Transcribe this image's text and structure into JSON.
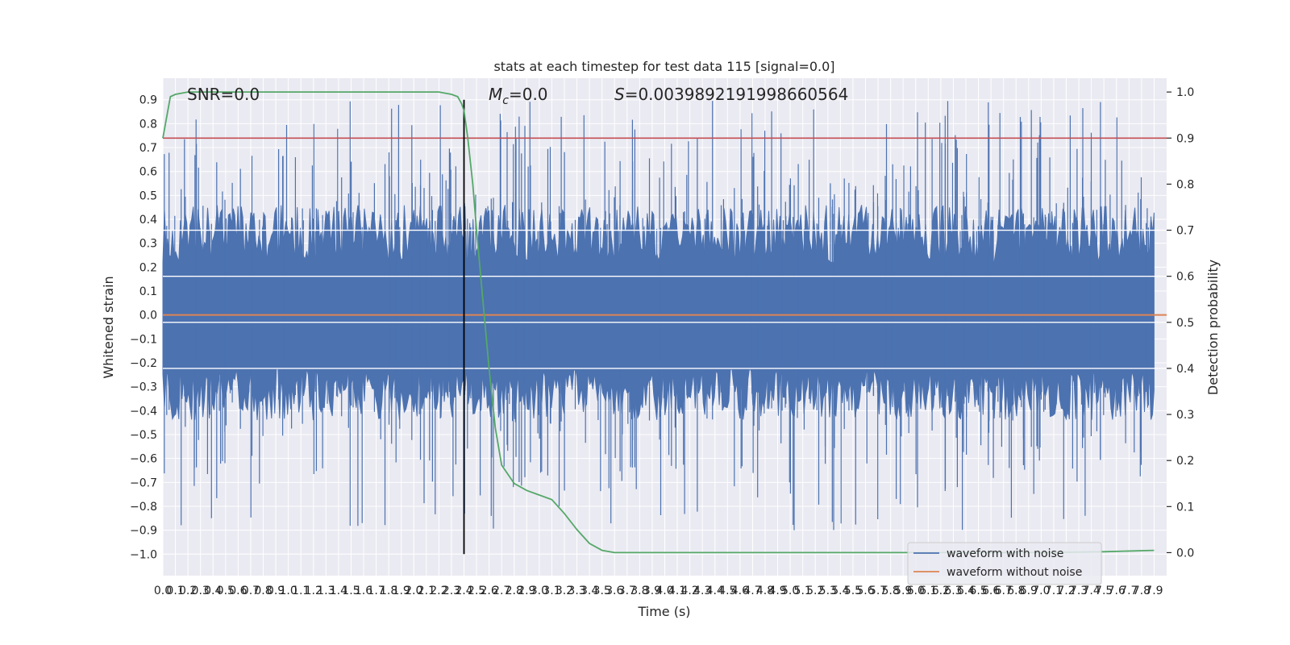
{
  "chart_data": {
    "type": "line",
    "title": "stats at each timestep for test data 115 [signal=0.0]",
    "xlabel": "Time (s)",
    "ylabel_left": "Whitened strain",
    "ylabel_right": "Detection probability",
    "xlim": [
      0,
      8
    ],
    "ylim_left": [
      -1.09,
      0.99
    ],
    "ylim_right": [
      -0.05,
      1.03
    ],
    "x_ticks": [
      "0.0",
      "0.1",
      "0.2",
      "0.3",
      "0.4",
      "0.5",
      "0.6",
      "0.7",
      "0.8",
      "0.9",
      "1.0",
      "1.1",
      "1.2",
      "1.3",
      "1.4",
      "1.5",
      "1.6",
      "1.7",
      "1.8",
      "1.9",
      "2.0",
      "2.1",
      "2.2",
      "2.3",
      "2.4",
      "2.5",
      "2.6",
      "2.7",
      "2.8",
      "2.9",
      "3.0",
      "3.1",
      "3.2",
      "3.3",
      "3.4",
      "3.5",
      "3.6",
      "3.7",
      "3.8",
      "3.9",
      "4.0",
      "4.1",
      "4.2",
      "4.3",
      "4.4",
      "4.5",
      "4.6",
      "4.7",
      "4.8",
      "4.9",
      "5.0",
      "5.1",
      "5.2",
      "5.3",
      "5.4",
      "5.5",
      "5.6",
      "5.7",
      "5.8",
      "5.9",
      "6.0",
      "6.1",
      "6.2",
      "6.3",
      "6.4",
      "6.5",
      "6.6",
      "6.7",
      "6.8",
      "6.9",
      "7.0",
      "7.1",
      "7.2",
      "7.3",
      "7.4",
      "7.5",
      "7.6",
      "7.7",
      "7.8",
      "7.9"
    ],
    "y_ticks_left": [
      "0.9",
      "0.8",
      "0.7",
      "0.6",
      "0.5",
      "0.4",
      "0.3",
      "0.2",
      "0.1",
      "0.0",
      "−0.1",
      "−0.2",
      "−0.3",
      "−0.4",
      "−0.5",
      "−0.6",
      "−0.7",
      "−0.8",
      "−0.9",
      "−1.0"
    ],
    "y_ticks_right": [
      "1.0",
      "0.9",
      "0.8",
      "0.7",
      "0.6",
      "0.5",
      "0.4",
      "0.3",
      "0.2",
      "0.1",
      "0.0"
    ],
    "annotations": {
      "snr": "SNR=0.0",
      "mc_symbol": "M",
      "mc_sub": "c",
      "mc_value": "=0.0",
      "s_symbol": "S",
      "s_value": "=0.0039892191998660564"
    },
    "threshold": {
      "axis": "right",
      "value": 0.9,
      "color": "#c44e52"
    },
    "vline": {
      "x": 2.4,
      "color": "#000000"
    },
    "series": [
      {
        "name": "waveform with noise",
        "axis": "left",
        "color": "#4c72b0",
        "envelope_abs_typical": 0.45,
        "envelope_abs_max": 0.9
      },
      {
        "name": "waveform without noise",
        "axis": "left",
        "color": "#dd8452",
        "constant": 0.0
      },
      {
        "axis": "right",
        "color": "#55a868",
        "x": [
          0,
          0.06,
          0.1,
          0.2,
          2.2,
          2.3,
          2.35,
          2.38,
          2.4,
          2.43,
          2.47,
          2.5,
          2.55,
          2.6,
          2.65,
          2.7,
          2.8,
          2.9,
          3.0,
          3.1,
          3.2,
          3.3,
          3.4,
          3.5,
          3.6,
          3.8,
          4.0,
          6.0,
          7.0,
          7.5,
          7.9
        ],
        "y": [
          0.9,
          0.99,
          0.995,
          1.0,
          1.0,
          0.995,
          0.99,
          0.975,
          0.96,
          0.9,
          0.8,
          0.7,
          0.55,
          0.4,
          0.27,
          0.19,
          0.15,
          0.135,
          0.125,
          0.115,
          0.085,
          0.05,
          0.02,
          0.005,
          0.0,
          0.0,
          0.0,
          0.0,
          0.0,
          0.002,
          0.005
        ]
      }
    ],
    "legend": {
      "placement": "lower-right",
      "entries": [
        "waveform with noise",
        "waveform without noise"
      ]
    },
    "grid": true,
    "background": "#eaeaf2"
  }
}
